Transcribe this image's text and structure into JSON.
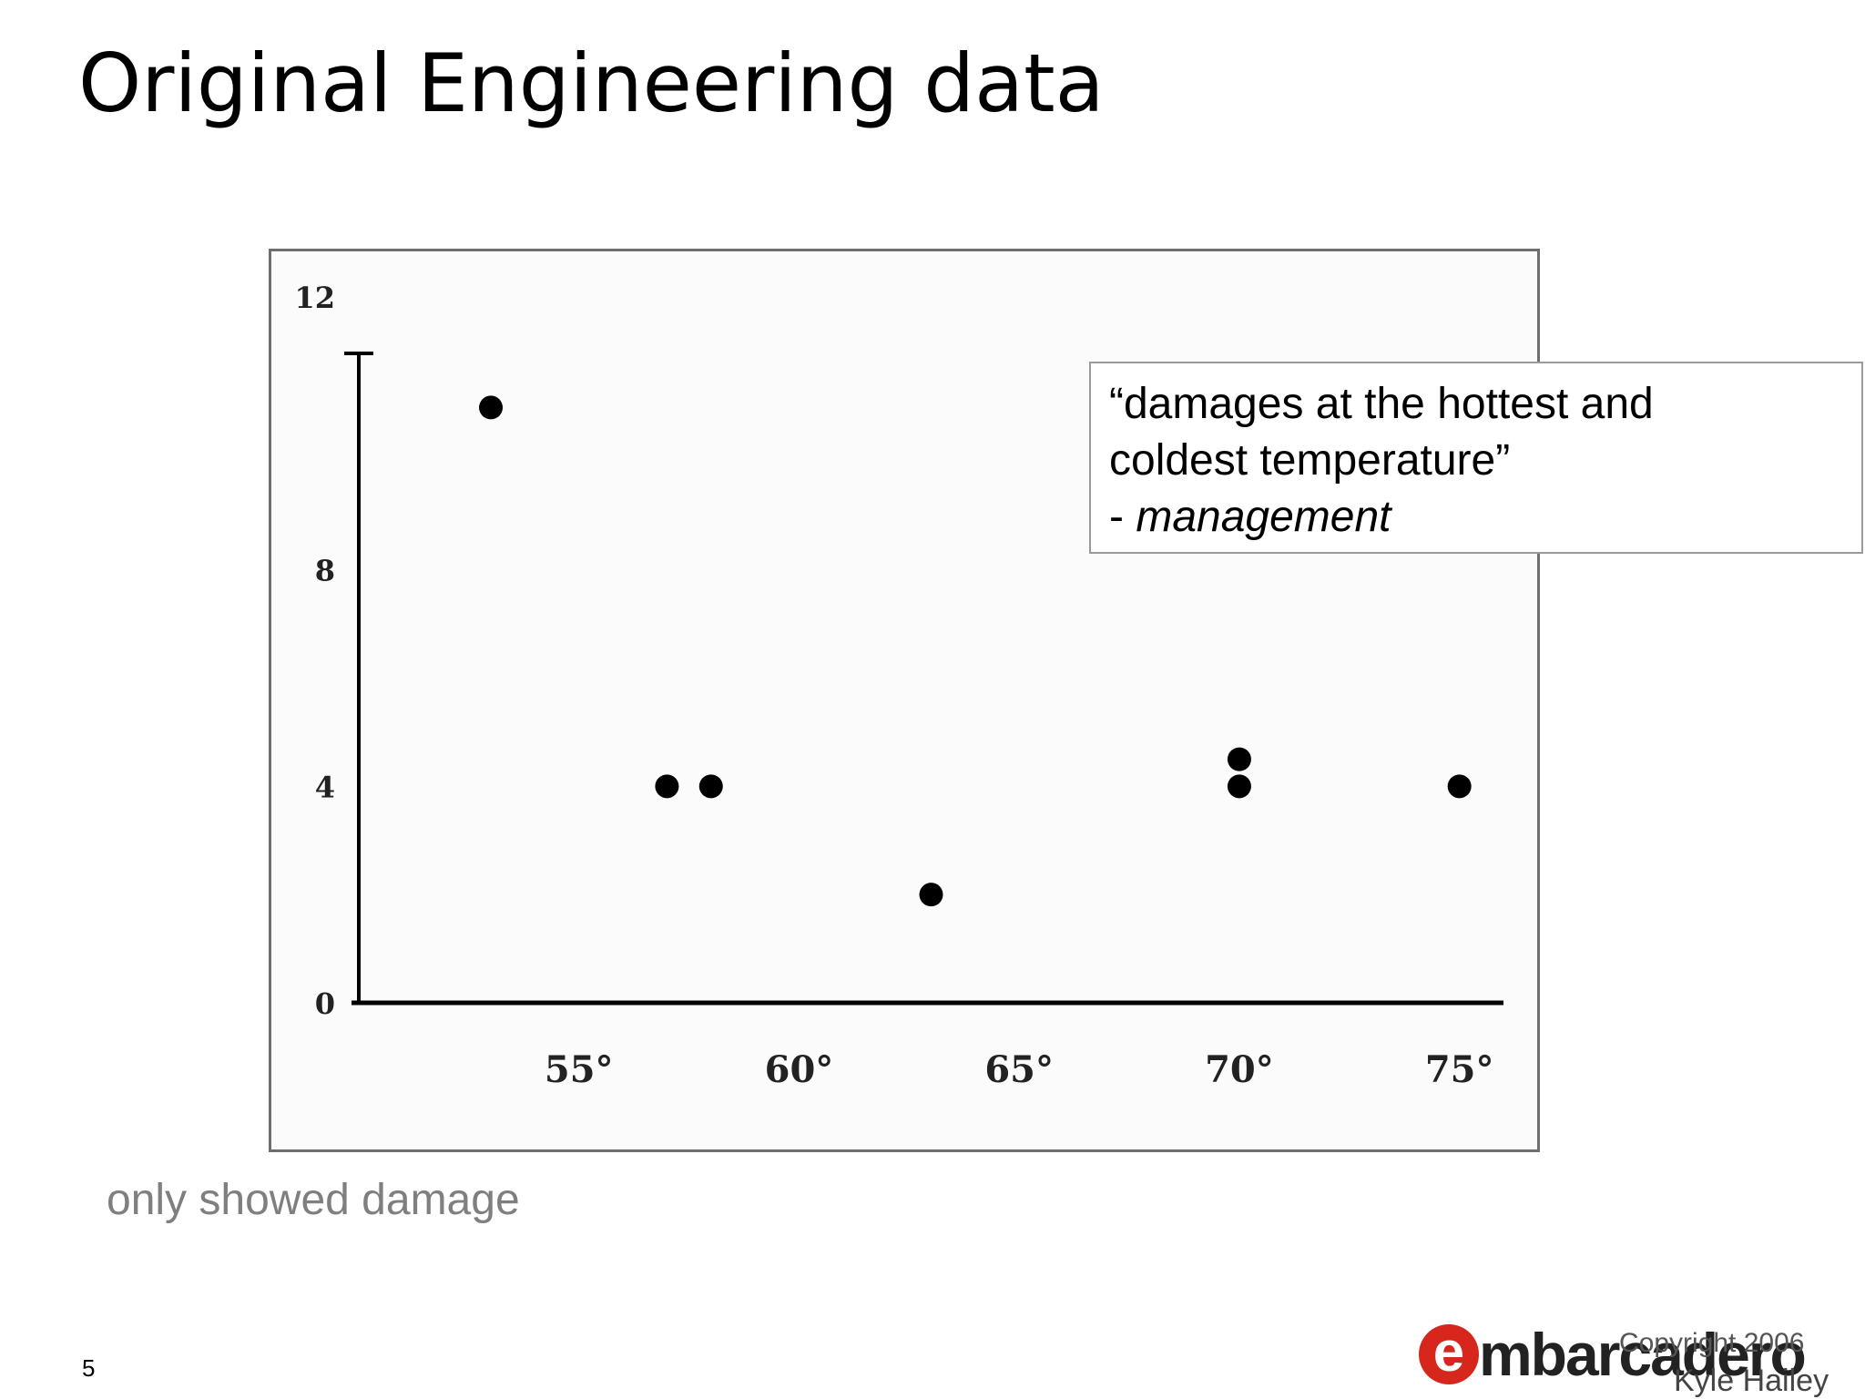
{
  "slide": {
    "title": "Original Engineering data",
    "caption": "only showed damage",
    "page_number": "5"
  },
  "callout": {
    "quote_line1": "“damages at the hottest and",
    "quote_line2": "coldest temperature”",
    "attribution_dash": "- ",
    "attribution": "management"
  },
  "footer": {
    "logo_letter": "e",
    "logo_word": "mbarcadero",
    "copyright": "Copyright 2006",
    "author": "Kyle Hailey"
  },
  "chart_data": {
    "type": "scatter",
    "x_tick_labels": [
      "55°",
      "60°",
      "65°",
      "70°",
      "75°"
    ],
    "x_ticks": [
      55,
      60,
      65,
      70,
      75
    ],
    "y_tick_labels": [
      "12",
      "8",
      "4",
      "0"
    ],
    "y_ticks": [
      12,
      8,
      4,
      0
    ],
    "xlim": [
      50,
      76
    ],
    "ylim": [
      0,
      12
    ],
    "points": [
      {
        "x": 53,
        "y": 11
      },
      {
        "x": 57,
        "y": 4
      },
      {
        "x": 58,
        "y": 4
      },
      {
        "x": 63,
        "y": 2
      },
      {
        "x": 70,
        "y": 4.5
      },
      {
        "x": 70,
        "y": 4
      },
      {
        "x": 75,
        "y": 4
      }
    ],
    "grid": false,
    "legend": "none",
    "marker_color": "#000000"
  }
}
